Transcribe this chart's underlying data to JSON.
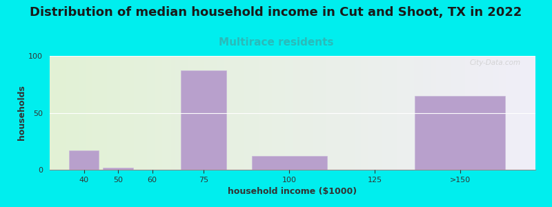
{
  "title": "Distribution of median household income in Cut and Shoot, TX in 2022",
  "subtitle": "Multirace residents",
  "xlabel": "household income ($1000)",
  "ylabel": "households",
  "background_color": "#00EEEE",
  "bar_color": "#b8a0cc",
  "bar_edgecolor": "#c8b8d8",
  "values": [
    17,
    2,
    0,
    87,
    12,
    0,
    65
  ],
  "bar_positions": [
    40,
    50,
    60,
    75,
    100,
    125,
    150
  ],
  "bar_widths": [
    10,
    10,
    10,
    15,
    25,
    25,
    30
  ],
  "xtick_labels": [
    "40",
    "50",
    "60",
    "75",
    "100",
    "125",
    ">150"
  ],
  "xtick_positions": [
    40,
    50,
    60,
    75,
    100,
    125,
    150
  ],
  "xlim": [
    30,
    172
  ],
  "ylim": [
    0,
    100
  ],
  "yticks": [
    0,
    50,
    100
  ],
  "title_fontsize": 13,
  "subtitle_fontsize": 11,
  "subtitle_color": "#2ababa",
  "axis_label_fontsize": 9,
  "tick_fontsize": 8,
  "watermark_text": "City-Data.com",
  "grad_left": "#e2f2d5",
  "grad_right": "#f0eef8"
}
